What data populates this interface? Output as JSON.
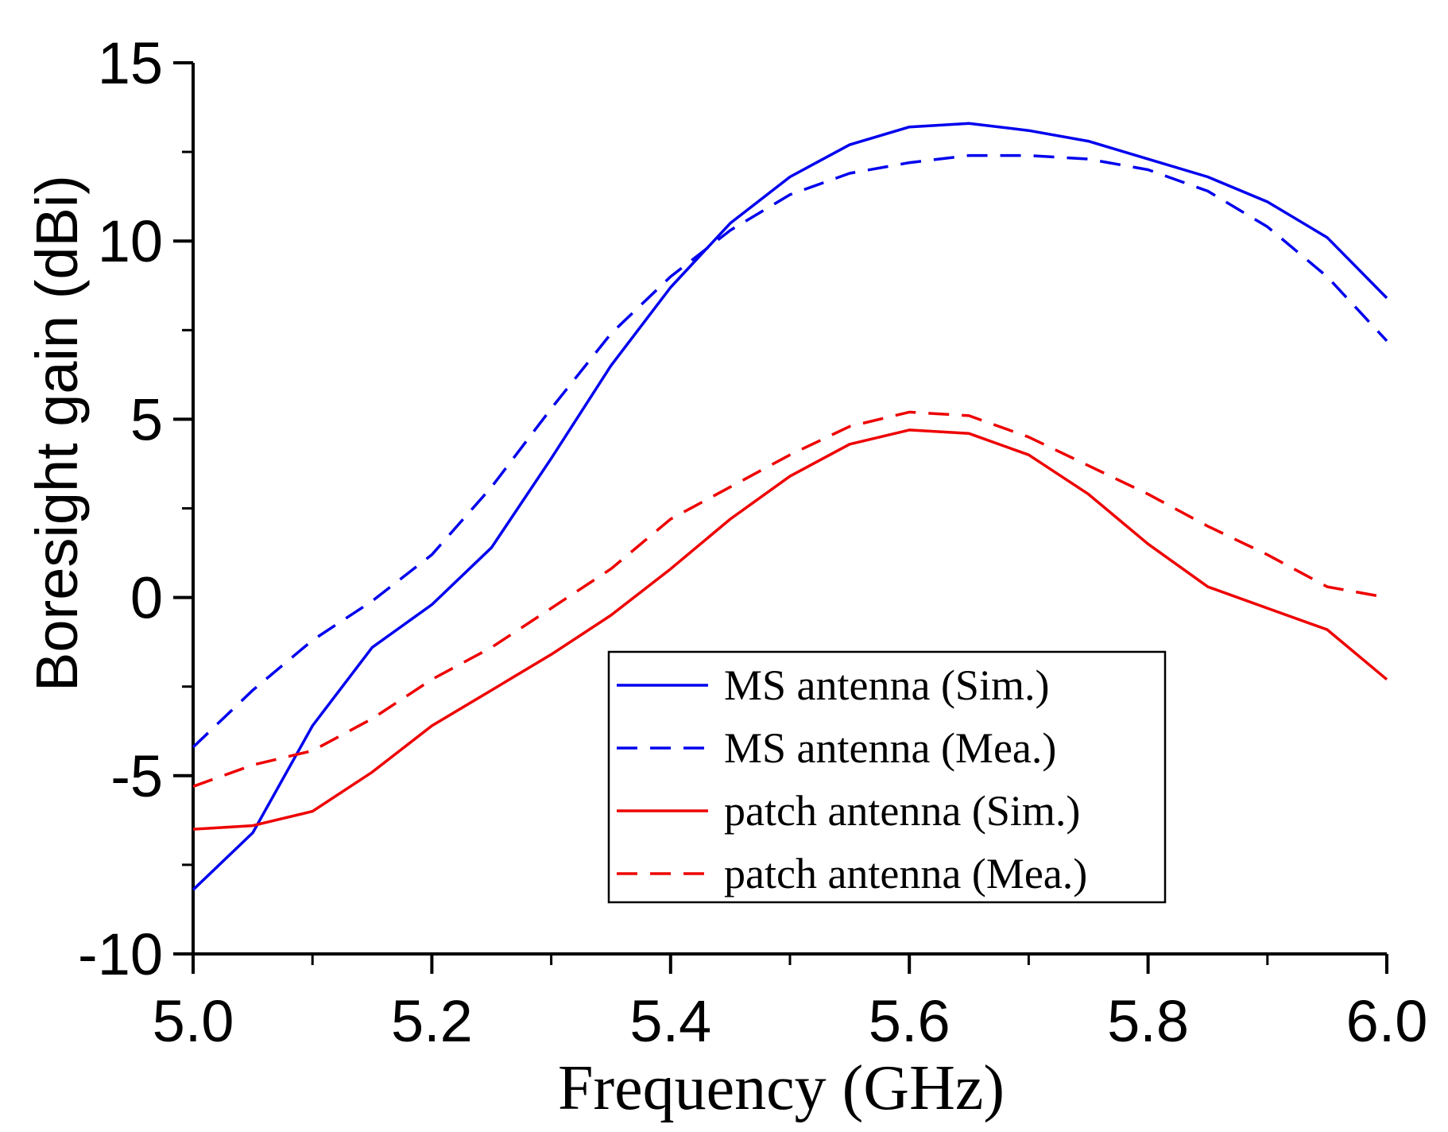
{
  "chart_data": {
    "type": "line",
    "title": "",
    "xlabel": "Frequency (GHz)",
    "ylabel": "Boresight gain (dBi)",
    "xlim": [
      5.0,
      6.0
    ],
    "ylim": [
      -10,
      15
    ],
    "xticks": [
      "5.0",
      "5.2",
      "5.4",
      "5.6",
      "5.8",
      "6.0"
    ],
    "yticks": [
      "-10",
      "-5",
      "0",
      "5",
      "10",
      "15"
    ],
    "grid": false,
    "legend_position": "lower-right",
    "x": [
      5.0,
      5.05,
      5.1,
      5.15,
      5.2,
      5.25,
      5.3,
      5.35,
      5.4,
      5.45,
      5.5,
      5.55,
      5.6,
      5.65,
      5.7,
      5.75,
      5.8,
      5.85,
      5.9,
      5.95,
      6.0
    ],
    "series": [
      {
        "name": "MS antenna (Sim.)",
        "color": "#0000ee",
        "dash": "solid",
        "values": [
          -8.2,
          -6.6,
          -3.6,
          -1.4,
          -0.2,
          1.4,
          3.9,
          6.5,
          8.7,
          10.5,
          11.8,
          12.7,
          13.2,
          13.3,
          13.1,
          12.8,
          12.3,
          11.8,
          11.1,
          10.1,
          8.4
        ]
      },
      {
        "name": "MS antenna (Mea.)",
        "color": "#0000ee",
        "dash": "dashed",
        "values": [
          -4.2,
          -2.6,
          -1.2,
          -0.1,
          1.2,
          3.1,
          5.3,
          7.4,
          9.0,
          10.3,
          11.3,
          11.9,
          12.2,
          12.4,
          12.4,
          12.3,
          12.0,
          11.4,
          10.4,
          9.0,
          7.2
        ]
      },
      {
        "name": "patch antenna (Sim.)",
        "color": "#ee0000",
        "dash": "solid",
        "values": [
          -6.5,
          -6.4,
          -6.0,
          -4.9,
          -3.6,
          -2.6,
          -1.6,
          -0.5,
          0.8,
          2.2,
          3.4,
          4.3,
          4.7,
          4.6,
          4.0,
          2.9,
          1.5,
          0.3,
          -0.3,
          -0.9,
          -2.3
        ]
      },
      {
        "name": "patch antenna (Mea.)",
        "color": "#ee0000",
        "dash": "dashed",
        "values": [
          -5.3,
          -4.7,
          -4.3,
          -3.4,
          -2.3,
          -1.4,
          -0.3,
          0.8,
          2.2,
          3.1,
          4.0,
          4.8,
          5.2,
          5.1,
          4.5,
          3.7,
          2.9,
          2.0,
          1.2,
          0.3,
          0.0
        ]
      }
    ]
  }
}
